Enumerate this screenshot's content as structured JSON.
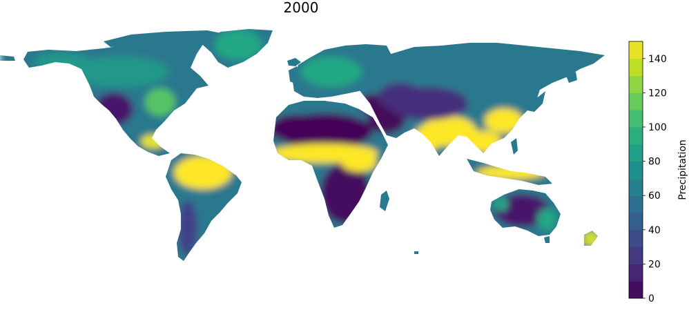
{
  "chart_data": {
    "type": "heatmap",
    "title": "2000",
    "colorbar": {
      "label": "Precipitation",
      "min": 0,
      "max": 150,
      "ticks": [
        0,
        20,
        40,
        60,
        80,
        100,
        120,
        140
      ],
      "colormap": "viridis",
      "levels": 15
    },
    "regions": [
      {
        "name": "Sahara",
        "value": 2
      },
      {
        "name": "Arabian Peninsula",
        "value": 3
      },
      {
        "name": "Southern Africa",
        "value": 5
      },
      {
        "name": "Central Africa (Sahel belt)",
        "value": 150
      },
      {
        "name": "Amazon basin",
        "value": 150
      },
      {
        "name": "South & Southeast Asia",
        "value": 150
      },
      {
        "name": "Eastern China",
        "value": 150
      },
      {
        "name": "Central America",
        "value": 145
      },
      {
        "name": "Central Asia / Tibet",
        "value": 20
      },
      {
        "name": "Siberia",
        "value": 60
      },
      {
        "name": "Western United States",
        "value": 10
      },
      {
        "name": "Eastern United States",
        "value": 110
      },
      {
        "name": "Canada",
        "value": 80
      },
      {
        "name": "Greenland",
        "value": 90
      },
      {
        "name": "Interior Australia",
        "value": 10
      },
      {
        "name": "Coastal Australia",
        "value": 90
      },
      {
        "name": "Europe",
        "value": 90
      },
      {
        "name": "Patagonia",
        "value": 30
      },
      {
        "name": "New Zealand",
        "value": 140
      },
      {
        "name": "Indonesia",
        "value": 150
      }
    ]
  }
}
